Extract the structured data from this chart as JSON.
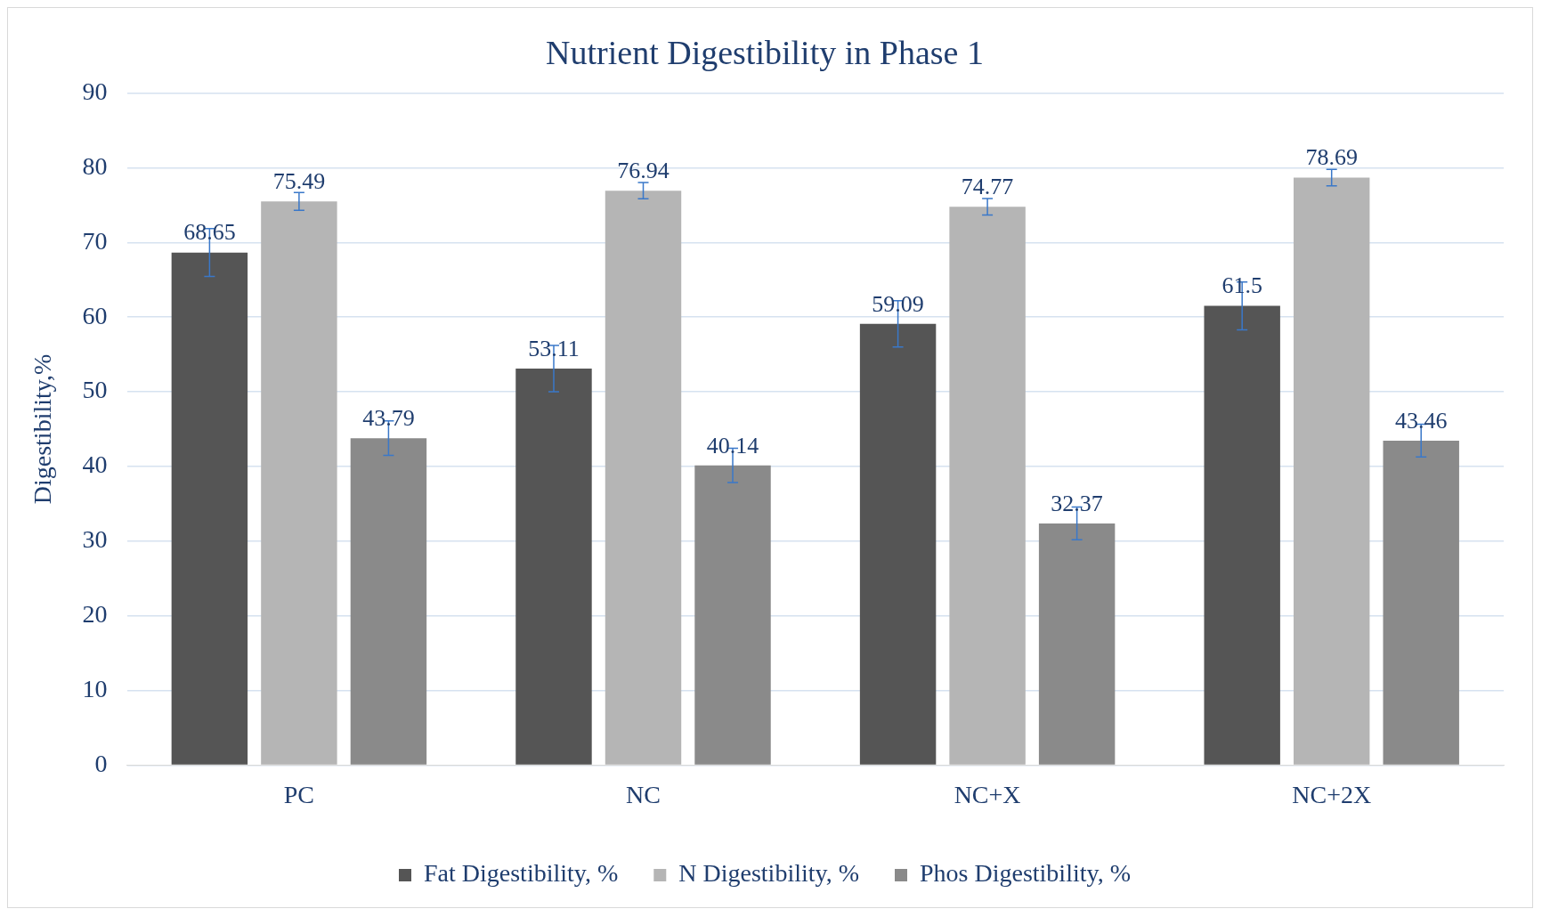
{
  "chart_data": {
    "type": "bar",
    "title": "Nutrient Digestibility in Phase 1",
    "ylabel": "Digestibility,%",
    "categories": [
      "PC",
      "NC",
      "NC+X",
      "NC+2X"
    ],
    "series": [
      {
        "name": "Fat Digestibility, %",
        "color": "#555555",
        "values": [
          68.65,
          53.11,
          59.09,
          61.5
        ],
        "errors": [
          3.2,
          3.1,
          3.1,
          3.2
        ]
      },
      {
        "name": "N Digestibility, %",
        "color": "#b5b5b5",
        "values": [
          75.49,
          76.94,
          74.77,
          78.69
        ],
        "errors": [
          1.2,
          1.1,
          1.1,
          1.1
        ]
      },
      {
        "name": "Phos Digestibility, %",
        "color": "#8a8a8a",
        "values": [
          43.79,
          40.14,
          32.37,
          43.46
        ],
        "errors": [
          2.3,
          2.3,
          2.2,
          2.2
        ]
      }
    ],
    "ylim": [
      0,
      90
    ],
    "yticks": [
      0,
      10,
      20,
      30,
      40,
      50,
      60,
      70,
      80,
      90
    ],
    "grid": "y",
    "legend": "bottom",
    "data_labels": true
  }
}
